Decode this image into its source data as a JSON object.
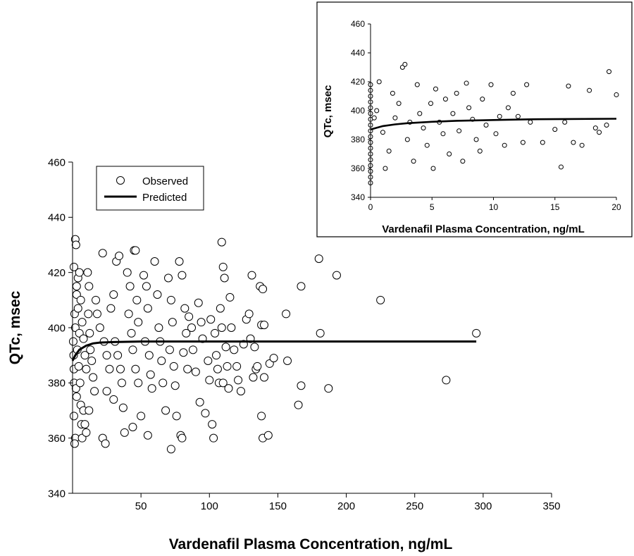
{
  "chart_data": [
    {
      "type": "scatter",
      "id": "main",
      "xlabel": "Vardenafil Plasma Concentration, ng/mL",
      "ylabel": "QTc, msec",
      "xlim": [
        0,
        350
      ],
      "ylim": [
        340,
        460
      ],
      "xticks": [
        50,
        100,
        150,
        200,
        250,
        300,
        350
      ],
      "yticks": [
        340,
        360,
        380,
        400,
        420,
        440,
        460
      ],
      "grid": false,
      "legend": {
        "placement": "top-left",
        "entries": [
          "Observed",
          "Predicted"
        ]
      },
      "series": [
        {
          "name": "Observed",
          "marker": "open-circle",
          "points": [
            [
              0.5,
              395
            ],
            [
              1.2,
              380
            ],
            [
              2.0,
              432
            ],
            [
              2.5,
              430
            ],
            [
              1.0,
              422
            ],
            [
              3.0,
              415
            ],
            [
              1.5,
              405
            ],
            [
              2.0,
              400
            ],
            [
              0.8,
              390
            ],
            [
              1.0,
              385
            ],
            [
              2.5,
              378
            ],
            [
              1.0,
              368
            ],
            [
              2.0,
              360
            ],
            [
              1.5,
              358
            ],
            [
              3.0,
              412
            ],
            [
              4.0,
              407
            ],
            [
              5.0,
              398
            ],
            [
              3.5,
              392
            ],
            [
              4.5,
              386
            ],
            [
              5.5,
              380
            ],
            [
              6.0,
              372
            ],
            [
              6.5,
              365
            ],
            [
              7.0,
              360
            ],
            [
              4.0,
              418
            ],
            [
              5.0,
              420
            ],
            [
              6.0,
              410
            ],
            [
              7.0,
              402
            ],
            [
              8.0,
              396
            ],
            [
              9.0,
              390
            ],
            [
              10.0,
              385
            ],
            [
              3.0,
              375
            ],
            [
              8.0,
              370
            ],
            [
              9.0,
              365
            ],
            [
              10.0,
              362
            ],
            [
              11.0,
              420
            ],
            [
              12.0,
              415
            ],
            [
              11.5,
              405
            ],
            [
              12.5,
              398
            ],
            [
              13.0,
              392
            ],
            [
              14.0,
              388
            ],
            [
              15.0,
              382
            ],
            [
              16.0,
              377
            ],
            [
              12.0,
              370
            ],
            [
              17.0,
              410
            ],
            [
              18.0,
              405
            ],
            [
              20.0,
              400
            ],
            [
              22.0,
              427
            ],
            [
              23.0,
              395
            ],
            [
              25.0,
              390
            ],
            [
              27.0,
              385
            ],
            [
              22.0,
              360
            ],
            [
              24.0,
              358
            ],
            [
              25.0,
              377
            ],
            [
              28.0,
              407
            ],
            [
              30.0,
              412
            ],
            [
              32.0,
              424
            ],
            [
              34.0,
              426
            ],
            [
              31.0,
              395
            ],
            [
              33.0,
              390
            ],
            [
              35.0,
              385
            ],
            [
              36.0,
              380
            ],
            [
              30.0,
              374
            ],
            [
              37.0,
              371
            ],
            [
              38.0,
              362
            ],
            [
              40.0,
              420
            ],
            [
              42.0,
              415
            ],
            [
              41.0,
              405
            ],
            [
              43.0,
              398
            ],
            [
              44.0,
              392
            ],
            [
              45.0,
              428
            ],
            [
              46.0,
              428
            ],
            [
              47.0,
              410
            ],
            [
              48.0,
              402
            ],
            [
              46.0,
              385
            ],
            [
              48.0,
              380
            ],
            [
              44.0,
              364
            ],
            [
              50.0,
              368
            ],
            [
              52.0,
              419
            ],
            [
              54.0,
              415
            ],
            [
              55.0,
              407
            ],
            [
              53.0,
              395
            ],
            [
              56.0,
              390
            ],
            [
              57.0,
              383
            ],
            [
              58.0,
              378
            ],
            [
              55.0,
              361
            ],
            [
              60.0,
              424
            ],
            [
              62.0,
              412
            ],
            [
              63.0,
              400
            ],
            [
              64.0,
              395
            ],
            [
              65.0,
              388
            ],
            [
              66.0,
              380
            ],
            [
              68.0,
              370
            ],
            [
              70.0,
              418
            ],
            [
              72.0,
              410
            ],
            [
              73.0,
              402
            ],
            [
              71.0,
              392
            ],
            [
              74.0,
              386
            ],
            [
              72.0,
              356
            ],
            [
              75.0,
              379
            ],
            [
              76.0,
              368
            ],
            [
              78.0,
              424
            ],
            [
              80.0,
              419
            ],
            [
              82.0,
              407
            ],
            [
              83.0,
              398
            ],
            [
              81.0,
              391
            ],
            [
              84.0,
              385
            ],
            [
              79.0,
              361
            ],
            [
              80.0,
              360
            ],
            [
              85.0,
              404
            ],
            [
              87.0,
              400
            ],
            [
              88.0,
              392
            ],
            [
              90.0,
              384
            ],
            [
              92.0,
              409
            ],
            [
              94.0,
              402
            ],
            [
              95.0,
              396
            ],
            [
              93.0,
              373
            ],
            [
              97.0,
              369
            ],
            [
              99.0,
              388
            ],
            [
              100.0,
              381
            ],
            [
              102.0,
              365
            ],
            [
              103.0,
              360
            ],
            [
              101.0,
              403
            ],
            [
              104.0,
              398
            ],
            [
              105.0,
              390
            ],
            [
              106.0,
              385
            ],
            [
              107.0,
              380
            ],
            [
              109.0,
              431
            ],
            [
              110.0,
              422
            ],
            [
              111.0,
              418
            ],
            [
              108.0,
              407
            ],
            [
              109.0,
              400
            ],
            [
              112.0,
              393
            ],
            [
              113.0,
              386
            ],
            [
              110.0,
              380
            ],
            [
              114.0,
              378
            ],
            [
              115.0,
              411
            ],
            [
              116.0,
              400
            ],
            [
              118.0,
              392
            ],
            [
              120.0,
              386
            ],
            [
              121.0,
              381
            ],
            [
              123.0,
              377
            ],
            [
              125.0,
              394
            ],
            [
              127.0,
              403
            ],
            [
              129.0,
              405
            ],
            [
              130.0,
              396
            ],
            [
              131.0,
              419
            ],
            [
              133.0,
              393
            ],
            [
              134.0,
              385
            ],
            [
              132.0,
              382
            ],
            [
              135.0,
              386
            ],
            [
              137.0,
              415
            ],
            [
              138.0,
              401
            ],
            [
              139.0,
              414
            ],
            [
              140.0,
              401
            ],
            [
              140.0,
              382
            ],
            [
              138.0,
              368
            ],
            [
              139.0,
              360
            ],
            [
              143.0,
              361
            ],
            [
              144.0,
              387
            ],
            [
              147.0,
              389
            ],
            [
              156.0,
              405
            ],
            [
              157.0,
              388
            ],
            [
              165.0,
              372
            ],
            [
              167.0,
              415
            ],
            [
              167.0,
              379
            ],
            [
              180.0,
              425
            ],
            [
              181.0,
              398
            ],
            [
              187.0,
              378
            ],
            [
              193.0,
              419
            ],
            [
              225.0,
              410
            ],
            [
              273.0,
              381
            ],
            [
              295.0,
              398
            ]
          ]
        },
        {
          "name": "Predicted",
          "marker": "line",
          "points": [
            [
              0,
              388
            ],
            [
              2,
              390
            ],
            [
              5,
              392
            ],
            [
              10,
              393.5
            ],
            [
              15,
              394.3
            ],
            [
              20,
              394.6
            ],
            [
              30,
              394.8
            ],
            [
              50,
              395
            ],
            [
              100,
              395
            ],
            [
              150,
              395
            ],
            [
              200,
              395
            ],
            [
              250,
              395
            ],
            [
              295,
              395
            ]
          ]
        }
      ]
    },
    {
      "type": "scatter",
      "id": "inset",
      "xlabel": "Vardenafil Plasma Concentration, ng/mL",
      "ylabel": "QTc, msec",
      "xlim": [
        0,
        20
      ],
      "ylim": [
        340,
        460
      ],
      "xticks": [
        0,
        5,
        10,
        15,
        20
      ],
      "yticks": [
        340,
        360,
        380,
        400,
        420,
        440,
        460
      ],
      "grid": false,
      "series": [
        {
          "name": "Observed",
          "marker": "open-circle",
          "points": [
            [
              0,
              350
            ],
            [
              0,
              354
            ],
            [
              0,
              358
            ],
            [
              0,
              362
            ],
            [
              0,
              366
            ],
            [
              0,
              370
            ],
            [
              0,
              374
            ],
            [
              0,
              378
            ],
            [
              0,
              382
            ],
            [
              0,
              386
            ],
            [
              0,
              390
            ],
            [
              0,
              394
            ],
            [
              0,
              398
            ],
            [
              0,
              402
            ],
            [
              0,
              406
            ],
            [
              0,
              410
            ],
            [
              0,
              414
            ],
            [
              0,
              418
            ],
            [
              0.3,
              395
            ],
            [
              0.5,
              400
            ],
            [
              0.7,
              420
            ],
            [
              1.0,
              385
            ],
            [
              1.2,
              360
            ],
            [
              1.5,
              372
            ],
            [
              1.8,
              412
            ],
            [
              2.0,
              395
            ],
            [
              2.3,
              405
            ],
            [
              2.6,
              430
            ],
            [
              2.8,
              432
            ],
            [
              3.0,
              380
            ],
            [
              3.2,
              392
            ],
            [
              3.5,
              365
            ],
            [
              3.8,
              418
            ],
            [
              4.0,
              398
            ],
            [
              4.3,
              388
            ],
            [
              4.6,
              376
            ],
            [
              4.9,
              405
            ],
            [
              5.1,
              360
            ],
            [
              5.3,
              415
            ],
            [
              5.6,
              392
            ],
            [
              5.9,
              384
            ],
            [
              6.1,
              408
            ],
            [
              6.4,
              370
            ],
            [
              6.7,
              398
            ],
            [
              7.0,
              412
            ],
            [
              7.2,
              386
            ],
            [
              7.5,
              365
            ],
            [
              7.8,
              419
            ],
            [
              8.0,
              402
            ],
            [
              8.3,
              394
            ],
            [
              8.6,
              380
            ],
            [
              8.9,
              372
            ],
            [
              9.1,
              408
            ],
            [
              9.4,
              390
            ],
            [
              9.8,
              418
            ],
            [
              10.2,
              384
            ],
            [
              10.5,
              396
            ],
            [
              10.9,
              376
            ],
            [
              11.2,
              402
            ],
            [
              11.6,
              412
            ],
            [
              12.0,
              396
            ],
            [
              12.4,
              378
            ],
            [
              12.7,
              418
            ],
            [
              13.0,
              392
            ],
            [
              14.0,
              378
            ],
            [
              15.0,
              387
            ],
            [
              15.5,
              361
            ],
            [
              15.8,
              392
            ],
            [
              16.1,
              417
            ],
            [
              16.5,
              378
            ],
            [
              17.2,
              376
            ],
            [
              17.8,
              414
            ],
            [
              18.3,
              388
            ],
            [
              18.6,
              385
            ],
            [
              19.2,
              390
            ],
            [
              19.4,
              427
            ],
            [
              20.0,
              411
            ]
          ]
        },
        {
          "name": "Predicted",
          "marker": "line",
          "points": [
            [
              0,
              387
            ],
            [
              1,
              389.3
            ],
            [
              2,
              390.5
            ],
            [
              3,
              391.3
            ],
            [
              5,
              392.3
            ],
            [
              7,
              393
            ],
            [
              10,
              393.5
            ],
            [
              13,
              394
            ],
            [
              16,
              394.2
            ],
            [
              20,
              394.4
            ]
          ]
        }
      ]
    }
  ]
}
